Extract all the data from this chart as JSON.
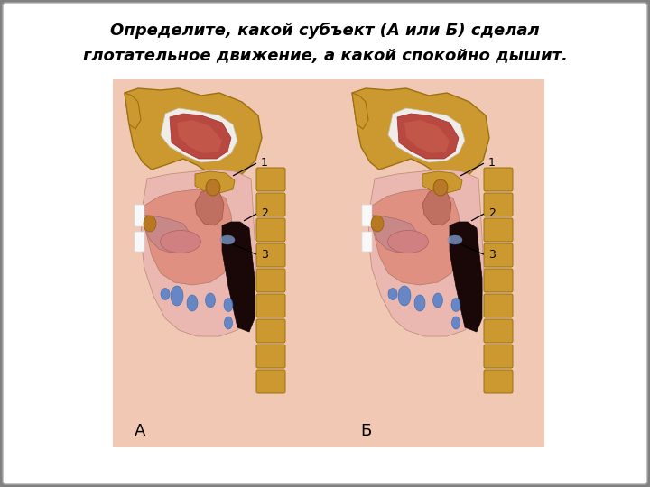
{
  "title_line1": "Определите, какой субъект (А или Б) сделал",
  "title_line2": "глотательное движение, а какой спокойно дышит.",
  "bg_outer": "#888888",
  "bg_card": "#ffffff",
  "bg_image": "#f0c8b4",
  "bone_color": "#cc9930",
  "bone_edge": "#9a7010",
  "flesh_dark": "#c86060",
  "flesh_mid": "#e09080",
  "flesh_light": "#eab8b0",
  "flesh_pink": "#f0c8c0",
  "dark_throat": "#2a1010",
  "blue_node": "#5580c8",
  "blue_edge": "#3360a8",
  "white_tooth": "#f8f8f8",
  "brown_tonsil": "#b87820",
  "ann_color": "#000000",
  "label_A": "А",
  "label_B": "Б",
  "title_fontsize": 13,
  "label_fontsize": 13,
  "num_fontsize": 9,
  "figsize": [
    7.2,
    5.4
  ],
  "dpi": 100
}
